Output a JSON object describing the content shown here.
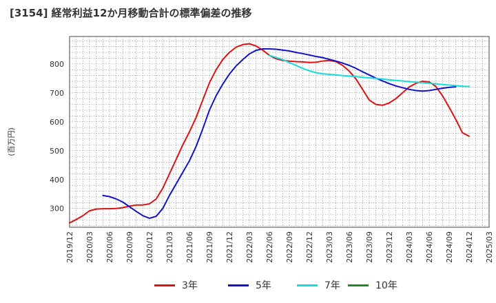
{
  "title": "[3154]  経常利益12か月移動合計の標準偏差の推移",
  "chart_data": {
    "type": "line",
    "title": "[3154]  経常利益12か月移動合計の標準偏差の推移",
    "xlabel": "",
    "ylabel": "(百万円)",
    "x_ticks": [
      "2019/12",
      "2020/03",
      "2020/06",
      "2020/09",
      "2020/12",
      "2021/03",
      "2021/06",
      "2021/09",
      "2021/12",
      "2022/03",
      "2022/06",
      "2022/09",
      "2022/12",
      "2023/03",
      "2023/06",
      "2023/09",
      "2023/12",
      "2024/03",
      "2024/06",
      "2024/09",
      "2024/12",
      "2025/03"
    ],
    "y_ticks": [
      300,
      400,
      500,
      600,
      700,
      800
    ],
    "xlim": [
      "2019/12",
      "2025/03"
    ],
    "ylim": [
      235,
      895
    ],
    "grid": true,
    "legend_position": "bottom",
    "series": [
      {
        "name": "3年",
        "color": "#dd1111",
        "points": [
          [
            "2019/12",
            250
          ],
          [
            "2020/01",
            262
          ],
          [
            "2020/02",
            275
          ],
          [
            "2020/03",
            292
          ],
          [
            "2020/04",
            298
          ],
          [
            "2020/05",
            299
          ],
          [
            "2020/06",
            299
          ],
          [
            "2020/07",
            300
          ],
          [
            "2020/08",
            303
          ],
          [
            "2020/09",
            308
          ],
          [
            "2020/10",
            312
          ],
          [
            "2020/11",
            312
          ],
          [
            "2020/12",
            316
          ],
          [
            "2021/01",
            333
          ],
          [
            "2021/02",
            370
          ],
          [
            "2021/03",
            420
          ],
          [
            "2021/04",
            470
          ],
          [
            "2021/05",
            520
          ],
          [
            "2021/06",
            565
          ],
          [
            "2021/07",
            615
          ],
          [
            "2021/08",
            675
          ],
          [
            "2021/09",
            735
          ],
          [
            "2021/10",
            780
          ],
          [
            "2021/11",
            815
          ],
          [
            "2021/12",
            840
          ],
          [
            "2022/01",
            858
          ],
          [
            "2022/02",
            867
          ],
          [
            "2022/03",
            870
          ],
          [
            "2022/04",
            862
          ],
          [
            "2022/05",
            848
          ],
          [
            "2022/06",
            830
          ],
          [
            "2022/07",
            818
          ],
          [
            "2022/08",
            812
          ],
          [
            "2022/09",
            810
          ],
          [
            "2022/10",
            808
          ],
          [
            "2022/11",
            807
          ],
          [
            "2022/12",
            805
          ],
          [
            "2023/01",
            806
          ],
          [
            "2023/02",
            810
          ],
          [
            "2023/03",
            812
          ],
          [
            "2023/04",
            808
          ],
          [
            "2023/05",
            795
          ],
          [
            "2023/06",
            775
          ],
          [
            "2023/07",
            748
          ],
          [
            "2023/08",
            712
          ],
          [
            "2023/09",
            675
          ],
          [
            "2023/10",
            660
          ],
          [
            "2023/11",
            657
          ],
          [
            "2023/12",
            665
          ],
          [
            "2024/01",
            680
          ],
          [
            "2024/02",
            700
          ],
          [
            "2024/03",
            720
          ],
          [
            "2024/04",
            733
          ],
          [
            "2024/05",
            740
          ],
          [
            "2024/06",
            738
          ],
          [
            "2024/07",
            722
          ],
          [
            "2024/08",
            690
          ],
          [
            "2024/09",
            650
          ],
          [
            "2024/10",
            608
          ],
          [
            "2024/11",
            562
          ],
          [
            "2024/12",
            550
          ]
        ]
      },
      {
        "name": "5年",
        "color": "#1111cc",
        "points": [
          [
            "2020/05",
            345
          ],
          [
            "2020/06",
            341
          ],
          [
            "2020/07",
            333
          ],
          [
            "2020/08",
            322
          ],
          [
            "2020/09",
            306
          ],
          [
            "2020/10",
            290
          ],
          [
            "2020/11",
            275
          ],
          [
            "2020/12",
            266
          ],
          [
            "2021/01",
            273
          ],
          [
            "2021/02",
            300
          ],
          [
            "2021/03",
            345
          ],
          [
            "2021/04",
            385
          ],
          [
            "2021/05",
            425
          ],
          [
            "2021/06",
            465
          ],
          [
            "2021/07",
            515
          ],
          [
            "2021/08",
            575
          ],
          [
            "2021/09",
            640
          ],
          [
            "2021/10",
            690
          ],
          [
            "2021/11",
            730
          ],
          [
            "2021/12",
            765
          ],
          [
            "2022/01",
            793
          ],
          [
            "2022/02",
            815
          ],
          [
            "2022/03",
            835
          ],
          [
            "2022/04",
            847
          ],
          [
            "2022/05",
            852
          ],
          [
            "2022/06",
            852
          ],
          [
            "2022/07",
            851
          ],
          [
            "2022/08",
            848
          ],
          [
            "2022/09",
            845
          ],
          [
            "2022/10",
            840
          ],
          [
            "2022/11",
            836
          ],
          [
            "2022/12",
            831
          ],
          [
            "2023/01",
            826
          ],
          [
            "2023/02",
            822
          ],
          [
            "2023/03",
            816
          ],
          [
            "2023/04",
            810
          ],
          [
            "2023/05",
            803
          ],
          [
            "2023/06",
            795
          ],
          [
            "2023/07",
            785
          ],
          [
            "2023/08",
            773
          ],
          [
            "2023/09",
            762
          ],
          [
            "2023/10",
            751
          ],
          [
            "2023/11",
            741
          ],
          [
            "2023/12",
            732
          ],
          [
            "2024/01",
            724
          ],
          [
            "2024/02",
            718
          ],
          [
            "2024/03",
            712
          ],
          [
            "2024/04",
            708
          ],
          [
            "2024/05",
            706
          ],
          [
            "2024/06",
            708
          ],
          [
            "2024/07",
            712
          ],
          [
            "2024/08",
            716
          ],
          [
            "2024/09",
            719
          ],
          [
            "2024/10",
            721
          ]
        ]
      },
      {
        "name": "7年",
        "color": "#11dddd",
        "points": [
          [
            "2022/06",
            830
          ],
          [
            "2022/07",
            822
          ],
          [
            "2022/08",
            815
          ],
          [
            "2022/09",
            805
          ],
          [
            "2022/10",
            795
          ],
          [
            "2022/11",
            785
          ],
          [
            "2022/12",
            776
          ],
          [
            "2023/01",
            770
          ],
          [
            "2023/02",
            766
          ],
          [
            "2023/03",
            764
          ],
          [
            "2023/04",
            762
          ],
          [
            "2023/05",
            760
          ],
          [
            "2023/06",
            758
          ],
          [
            "2023/07",
            756
          ],
          [
            "2023/08",
            754
          ],
          [
            "2023/09",
            752
          ],
          [
            "2023/10",
            750
          ],
          [
            "2023/11",
            748
          ],
          [
            "2023/12",
            745
          ],
          [
            "2024/01",
            743
          ],
          [
            "2024/02",
            741
          ],
          [
            "2024/03",
            739
          ],
          [
            "2024/04",
            737
          ],
          [
            "2024/05",
            735
          ],
          [
            "2024/06",
            733
          ],
          [
            "2024/07",
            731
          ],
          [
            "2024/08",
            729
          ],
          [
            "2024/09",
            727
          ],
          [
            "2024/10",
            725
          ],
          [
            "2024/11",
            723
          ],
          [
            "2024/12",
            722
          ]
        ]
      },
      {
        "name": "10年",
        "color": "#228822",
        "points": []
      }
    ]
  },
  "legend": [
    {
      "label": "3年",
      "color": "#dd1111"
    },
    {
      "label": "5年",
      "color": "#1111cc"
    },
    {
      "label": "7年",
      "color": "#11dddd"
    },
    {
      "label": "10年",
      "color": "#228822"
    }
  ]
}
